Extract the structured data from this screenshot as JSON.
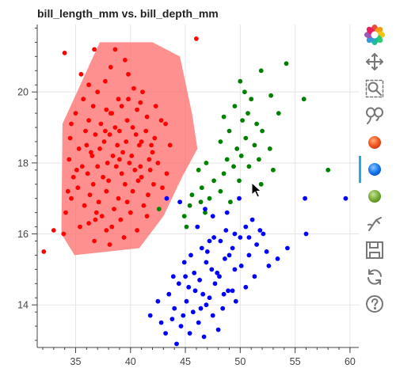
{
  "chart_data": {
    "type": "scatter",
    "title": "bill_length_mm vs. bill_depth_mm",
    "xlabel": "",
    "ylabel": "",
    "xlim": [
      31.5,
      60.8
    ],
    "ylim": [
      12.8,
      21.9
    ],
    "xticks": [
      35,
      40,
      45,
      50,
      55,
      60
    ],
    "yticks": [
      14,
      16,
      18,
      20
    ],
    "grid": true,
    "colors": {
      "red": "#ff0000",
      "green": "#008000",
      "blue": "#0000ff",
      "lasso_fill": "#ff6b6b"
    },
    "lasso_polygon": [
      [
        37.2,
        21.4
      ],
      [
        42.0,
        21.4
      ],
      [
        44.5,
        21.0
      ],
      [
        45.6,
        19.4
      ],
      [
        46.1,
        18.4
      ],
      [
        44.7,
        17.6
      ],
      [
        43.0,
        16.5
      ],
      [
        40.8,
        15.6
      ],
      [
        34.9,
        15.4
      ],
      [
        33.7,
        16.0
      ],
      [
        33.8,
        19.1
      ]
    ],
    "series": [
      {
        "color": "red",
        "points": [
          [
            32.1,
            15.5
          ],
          [
            34.0,
            21.1
          ],
          [
            46.0,
            21.5
          ],
          [
            36.7,
            21.2
          ],
          [
            38.6,
            21.2
          ],
          [
            39.5,
            20.9
          ],
          [
            38.2,
            20.7
          ],
          [
            35.5,
            20.5
          ],
          [
            39.8,
            20.5
          ],
          [
            37.7,
            20.3
          ],
          [
            36.2,
            20.2
          ],
          [
            40.3,
            20.1
          ],
          [
            37.0,
            20.0
          ],
          [
            41.1,
            20.0
          ],
          [
            35.7,
            19.8
          ],
          [
            38.9,
            19.8
          ],
          [
            40.9,
            19.7
          ],
          [
            36.6,
            19.6
          ],
          [
            39.2,
            19.6
          ],
          [
            42.3,
            19.6
          ],
          [
            37.8,
            19.5
          ],
          [
            40.6,
            19.5
          ],
          [
            38.3,
            19.4
          ],
          [
            35.0,
            19.4
          ],
          [
            41.5,
            19.3
          ],
          [
            36.2,
            19.2
          ],
          [
            39.7,
            19.2
          ],
          [
            42.8,
            19.2
          ],
          [
            34.6,
            19.1
          ],
          [
            37.3,
            19.1
          ],
          [
            40.2,
            19.0
          ],
          [
            38.6,
            19.0
          ],
          [
            43.2,
            19.1
          ],
          [
            35.9,
            18.9
          ],
          [
            39.0,
            18.9
          ],
          [
            41.4,
            18.9
          ],
          [
            36.8,
            18.8
          ],
          [
            38.1,
            18.8
          ],
          [
            40.5,
            18.8
          ],
          [
            42.2,
            18.7
          ],
          [
            34.5,
            18.7
          ],
          [
            37.6,
            18.6
          ],
          [
            39.6,
            18.6
          ],
          [
            41.0,
            18.6
          ],
          [
            36.0,
            18.5
          ],
          [
            38.8,
            18.5
          ],
          [
            40.8,
            18.5
          ],
          [
            43.6,
            18.5
          ],
          [
            35.3,
            18.4
          ],
          [
            37.2,
            18.4
          ],
          [
            39.3,
            18.3
          ],
          [
            42.0,
            18.3
          ],
          [
            36.5,
            18.2
          ],
          [
            38.4,
            18.2
          ],
          [
            40.1,
            18.2
          ],
          [
            41.7,
            18.1
          ],
          [
            34.4,
            18.1
          ],
          [
            37.9,
            18.0
          ],
          [
            39.9,
            18.0
          ],
          [
            42.5,
            18.0
          ],
          [
            35.6,
            17.9
          ],
          [
            37.0,
            17.9
          ],
          [
            38.7,
            17.9
          ],
          [
            40.4,
            17.8
          ],
          [
            41.8,
            17.8
          ],
          [
            36.1,
            17.7
          ],
          [
            39.2,
            17.7
          ],
          [
            43.3,
            17.7
          ],
          [
            34.8,
            17.6
          ],
          [
            37.5,
            17.6
          ],
          [
            40.7,
            17.5
          ],
          [
            38.0,
            17.5
          ],
          [
            36.6,
            17.4
          ],
          [
            39.5,
            17.4
          ],
          [
            42.1,
            17.4
          ],
          [
            35.2,
            17.3
          ],
          [
            37.8,
            17.2
          ],
          [
            40.2,
            17.2
          ],
          [
            41.6,
            17.1
          ],
          [
            36.3,
            17.1
          ],
          [
            38.9,
            17.0
          ],
          [
            34.6,
            17.0
          ],
          [
            37.1,
            16.9
          ],
          [
            39.7,
            16.9
          ],
          [
            41.2,
            16.8
          ],
          [
            35.8,
            16.8
          ],
          [
            38.5,
            16.7
          ],
          [
            36.9,
            16.6
          ],
          [
            40.0,
            16.6
          ],
          [
            34.1,
            16.6
          ],
          [
            37.4,
            16.5
          ],
          [
            39.1,
            16.4
          ],
          [
            41.5,
            16.5
          ],
          [
            36.2,
            16.3
          ],
          [
            38.3,
            16.2
          ],
          [
            35.4,
            16.2
          ],
          [
            40.6,
            16.1
          ],
          [
            37.8,
            16.1
          ],
          [
            33.9,
            16.0
          ],
          [
            39.4,
            15.9
          ],
          [
            36.7,
            15.8
          ],
          [
            38.1,
            15.7
          ],
          [
            33.0,
            16.1
          ],
          [
            42.9,
            17.3
          ],
          [
            41.0,
            17.6
          ],
          [
            36.4,
            18.3
          ],
          [
            38.2,
            19.4
          ],
          [
            39.8,
            19.8
          ],
          [
            41.9,
            18.5
          ],
          [
            35.1,
            17.8
          ],
          [
            37.7,
            18.9
          ],
          [
            40.9,
            17.9
          ],
          [
            36.8,
            16.4
          ],
          [
            34.3,
            17.2
          ],
          [
            39.0,
            18.1
          ]
        ]
      },
      {
        "color": "green",
        "points": [
          [
            54.2,
            20.8
          ],
          [
            51.9,
            20.6
          ],
          [
            50.0,
            20.3
          ],
          [
            52.8,
            19.9
          ],
          [
            51.0,
            19.8
          ],
          [
            49.5,
            19.6
          ],
          [
            50.7,
            19.4
          ],
          [
            53.5,
            19.4
          ],
          [
            48.5,
            19.3
          ],
          [
            50.2,
            19.2
          ],
          [
            51.5,
            19.1
          ],
          [
            49.0,
            18.9
          ],
          [
            52.0,
            18.9
          ],
          [
            50.5,
            18.7
          ],
          [
            48.2,
            18.6
          ],
          [
            51.3,
            18.5
          ],
          [
            49.7,
            18.4
          ],
          [
            52.7,
            18.4
          ],
          [
            50.1,
            18.2
          ],
          [
            48.8,
            18.1
          ],
          [
            51.7,
            18.1
          ],
          [
            46.9,
            18.0
          ],
          [
            49.4,
            17.9
          ],
          [
            50.8,
            17.9
          ],
          [
            53.0,
            17.8
          ],
          [
            46.2,
            17.8
          ],
          [
            48.5,
            17.7
          ],
          [
            47.6,
            17.5
          ],
          [
            49.9,
            17.5
          ],
          [
            51.9,
            17.4
          ],
          [
            46.5,
            17.3
          ],
          [
            48.2,
            17.2
          ],
          [
            45.6,
            17.1
          ],
          [
            47.2,
            17.0
          ],
          [
            49.1,
            16.9
          ],
          [
            45.4,
            16.8
          ],
          [
            46.8,
            16.6
          ],
          [
            44.9,
            16.5
          ],
          [
            42.6,
            16.7
          ],
          [
            45.1,
            16.2
          ],
          [
            58.0,
            17.8
          ],
          [
            55.8,
            19.8
          ],
          [
            50.4,
            20.0
          ],
          [
            46.4,
            16.9
          ]
        ]
      },
      {
        "color": "blue",
        "points": [
          [
            59.6,
            17.0
          ],
          [
            55.9,
            17.0
          ],
          [
            49.9,
            17.0
          ],
          [
            43.3,
            17.0
          ],
          [
            44.5,
            16.9
          ],
          [
            46.8,
            16.7
          ],
          [
            47.5,
            16.5
          ],
          [
            51.1,
            16.4
          ],
          [
            50.5,
            16.2
          ],
          [
            48.7,
            16.1
          ],
          [
            49.5,
            16.0
          ],
          [
            52.1,
            16.0
          ],
          [
            50.0,
            15.9
          ],
          [
            47.2,
            15.8
          ],
          [
            48.2,
            15.8
          ],
          [
            51.5,
            15.7
          ],
          [
            46.5,
            15.6
          ],
          [
            49.3,
            15.6
          ],
          [
            52.4,
            15.5
          ],
          [
            45.5,
            15.4
          ],
          [
            50.8,
            15.4
          ],
          [
            48.6,
            15.3
          ],
          [
            46.9,
            15.2
          ],
          [
            44.9,
            15.2
          ],
          [
            50.1,
            15.1
          ],
          [
            47.4,
            15.0
          ],
          [
            49.5,
            15.0
          ],
          [
            45.8,
            14.9
          ],
          [
            48.1,
            14.8
          ],
          [
            51.3,
            14.8
          ],
          [
            46.3,
            14.7
          ],
          [
            44.4,
            14.6
          ],
          [
            47.7,
            14.6
          ],
          [
            50.5,
            14.5
          ],
          [
            45.3,
            14.5
          ],
          [
            48.9,
            14.4
          ],
          [
            46.6,
            14.3
          ],
          [
            43.5,
            14.3
          ],
          [
            47.2,
            14.2
          ],
          [
            49.6,
            14.1
          ],
          [
            45.1,
            14.1
          ],
          [
            46.9,
            14.0
          ],
          [
            44.0,
            13.9
          ],
          [
            48.4,
            13.9
          ],
          [
            45.7,
            13.8
          ],
          [
            47.5,
            13.7
          ],
          [
            43.8,
            13.6
          ],
          [
            46.2,
            13.5
          ],
          [
            44.6,
            13.4
          ],
          [
            48.0,
            13.3
          ],
          [
            45.4,
            13.2
          ],
          [
            43.2,
            13.2
          ],
          [
            46.7,
            13.1
          ],
          [
            42.8,
            13.5
          ],
          [
            44.2,
            12.9
          ],
          [
            41.8,
            13.7
          ],
          [
            53.4,
            15.3
          ],
          [
            54.3,
            15.6
          ],
          [
            49.3,
            14.4
          ],
          [
            50.8,
            15.9
          ],
          [
            47.0,
            15.5
          ],
          [
            45.0,
            14.8
          ],
          [
            46.1,
            16.2
          ],
          [
            48.8,
            16.6
          ],
          [
            44.8,
            13.7
          ],
          [
            47.9,
            14.9
          ],
          [
            43.9,
            14.8
          ],
          [
            49.0,
            15.4
          ],
          [
            45.9,
            14.4
          ],
          [
            46.4,
            13.9
          ],
          [
            42.5,
            14.1
          ],
          [
            56.0,
            16.0
          ],
          [
            52.6,
            15.1
          ],
          [
            51.8,
            16.1
          ],
          [
            47.6,
            15.9
          ],
          [
            48.5,
            14.3
          ]
        ]
      }
    ]
  },
  "toolbar": {
    "tools": [
      {
        "name": "bokeh-logo-icon",
        "active": false,
        "interactable": true
      },
      {
        "name": "pan-tool-icon",
        "active": false,
        "interactable": true
      },
      {
        "name": "box-zoom-tool-icon",
        "active": false,
        "interactable": true
      },
      {
        "name": "lasso-select-tool-icon",
        "active": false,
        "interactable": true
      },
      {
        "name": "legend-red-circle-icon",
        "active": false,
        "interactable": true
      },
      {
        "name": "legend-blue-circle-icon",
        "active": true,
        "interactable": true
      },
      {
        "name": "legend-green-circle-icon",
        "active": false,
        "interactable": true
      },
      {
        "name": "wheel-zoom-tool-icon",
        "active": false,
        "interactable": true
      },
      {
        "name": "save-tool-icon",
        "active": false,
        "interactable": true
      },
      {
        "name": "reset-tool-icon",
        "active": false,
        "interactable": true
      },
      {
        "name": "help-tool-icon",
        "active": false,
        "interactable": true
      }
    ]
  }
}
